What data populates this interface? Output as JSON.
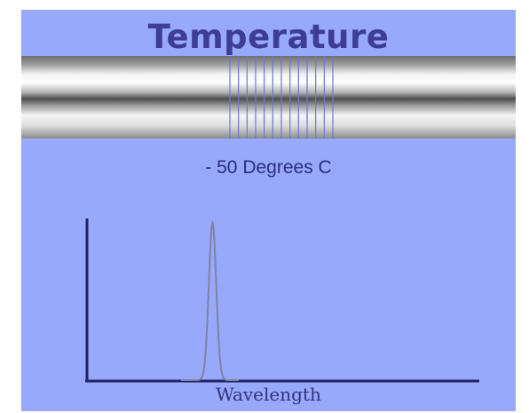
{
  "diagram": {
    "title": "Temperature",
    "temperature_readout": "- 50 Degrees C",
    "x_axis_label": "Wavelength",
    "grating_line_count": 13,
    "peak_position_fraction": 0.32,
    "colors": {
      "background": "#98a8fb",
      "title_text": "#3c3d93",
      "readout_text": "#2a2e80",
      "axis_label_text": "#32337c",
      "axis": "#222266",
      "grating_line": "#6b78d8",
      "peak_curve": "#7f83a4"
    },
    "icons": {
      "fiber": "optical-fiber-icon",
      "grating": "bragg-grating-icon"
    }
  }
}
